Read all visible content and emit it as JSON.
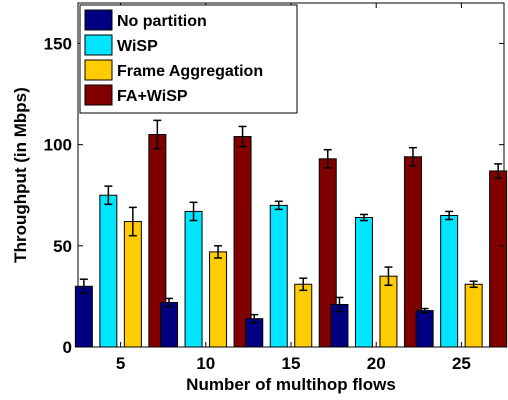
{
  "chart_data": {
    "type": "bar",
    "title": "",
    "xlabel": "Number of multihop flows",
    "ylabel": "Throughput (in Mbps)",
    "categories": [
      "5",
      "10",
      "15",
      "20",
      "25"
    ],
    "ylim": [
      0,
      170
    ],
    "yticks": [
      "0",
      "50",
      "100",
      "150"
    ],
    "grid": false,
    "legend_position": "top-left",
    "error_bars": true,
    "series": [
      {
        "name": "No partition",
        "color": "#000080",
        "values": [
          30,
          22,
          14,
          21,
          18
        ],
        "errors": [
          3.5,
          2,
          2,
          3.5,
          1
        ]
      },
      {
        "name": "WiSP",
        "color": "#00e5ff",
        "values": [
          75,
          67,
          70,
          64,
          65
        ],
        "errors": [
          4.5,
          4.5,
          2,
          1.5,
          2
        ]
      },
      {
        "name": "Frame Aggregation",
        "color": "#ffcc00",
        "values": [
          62,
          47,
          31,
          35,
          31
        ],
        "errors": [
          7,
          3,
          3,
          4.5,
          1.5
        ]
      },
      {
        "name": "FA+WiSP",
        "color": "#800000",
        "values": [
          105,
          104,
          93,
          94,
          87
        ],
        "errors": [
          7,
          5,
          4.5,
          4.5,
          3.5
        ]
      }
    ]
  }
}
